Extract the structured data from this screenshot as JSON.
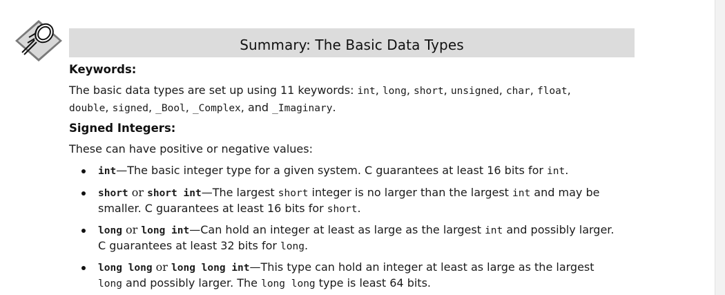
{
  "section_title": "Summary: The Basic Data Types",
  "keywords": {
    "heading": "Keywords:",
    "intro": "The basic data types are set up using 11 keywords:",
    "list": [
      "int",
      "long",
      "short",
      "unsigned",
      "char",
      "float",
      "double",
      "signed",
      "_Bool",
      "_Complex"
    ],
    "and_word": "and",
    "last": "_Imaginary",
    "sep": ", ",
    "period": "."
  },
  "signed_integers": {
    "heading": "Signed Integers:",
    "intro": "These can have positive or negative values:",
    "items": [
      {
        "term_a": "int",
        "dash": "—",
        "d1": "The basic integer type for a given system. C guarantees at least 16 bits for ",
        "c1": "int",
        "d2": "."
      },
      {
        "term_a": "short",
        "or": " or ",
        "term_b": "short int",
        "dash": "—",
        "d1": "The largest ",
        "c1": "short",
        "d2": " integer is no larger than the largest ",
        "c2": "int",
        "d3": " and may be",
        "d4": "smaller. C guarantees at least 16 bits for ",
        "c3": "short",
        "d5": "."
      },
      {
        "term_a": "long",
        "or": " or ",
        "term_b": "long int",
        "dash": "—",
        "d1": "Can hold an integer at least as large as the largest ",
        "c1": "int",
        "d2": " and possibly larger.",
        "d3": "C guarantees at least 32 bits for ",
        "c2": "long",
        "d4": "."
      },
      {
        "term_a": "long long",
        "or": " or ",
        "term_b": "long long int",
        "dash": "—",
        "d1": "This type can hold an integer at least as large as the largest",
        "c1": "long",
        "d2": " and possibly larger. The ",
        "c2": "long long",
        "d3": " type is least 64 bits."
      }
    ]
  }
}
